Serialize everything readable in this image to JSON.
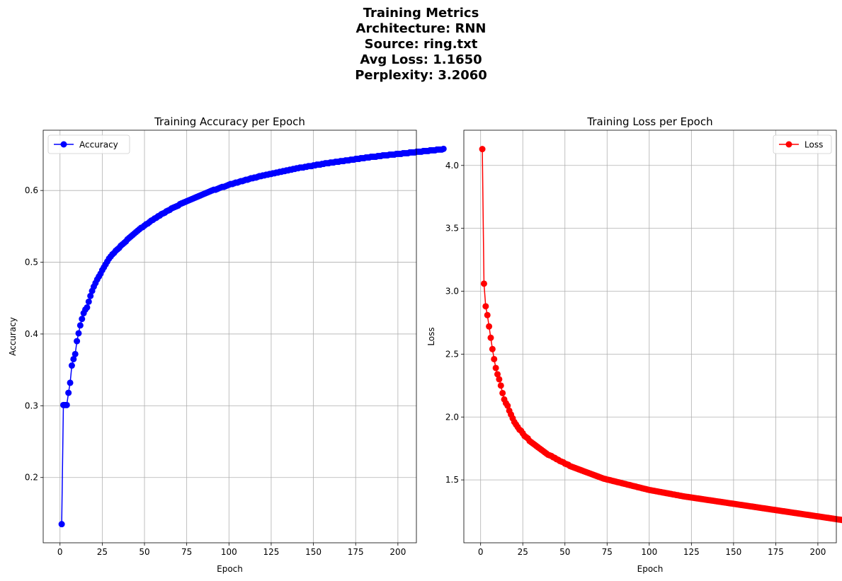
{
  "figure": {
    "suptitle_lines": [
      "Training Metrics",
      "Architecture: RNN",
      "Source: ring.txt",
      "Avg Loss: 1.1650",
      "Perplexity: 3.2060"
    ]
  },
  "chart_data": [
    {
      "type": "line",
      "title": "Training Accuracy per Epoch",
      "xlabel": "Epoch",
      "ylabel": "Accuracy",
      "xlim": [
        -9.95,
        210.95
      ],
      "ylim": [
        0.109,
        0.684
      ],
      "xticks": [
        0,
        25,
        50,
        75,
        100,
        125,
        150,
        175,
        200
      ],
      "yticks": [
        0.2,
        0.3,
        0.4,
        0.5,
        0.6
      ],
      "ytick_labels": [
        "0.2",
        "0.3",
        "0.4",
        "0.5",
        "0.6"
      ],
      "grid": true,
      "legend_position": "upper-left",
      "marker": "circle",
      "series": [
        {
          "name": "Accuracy",
          "color": "#0000ff",
          "x_start": 1,
          "x_step": 1,
          "values": [
            0.135,
            0.301,
            0.301,
            0.301,
            0.318,
            0.332,
            0.356,
            0.365,
            0.372,
            0.39,
            0.401,
            0.412,
            0.421,
            0.429,
            0.434,
            0.437,
            0.445,
            0.453,
            0.46,
            0.466,
            0.471,
            0.476,
            0.48,
            0.484,
            0.489,
            0.493,
            0.497,
            0.501,
            0.505,
            0.508,
            0.511,
            0.513,
            0.516,
            0.518,
            0.52,
            0.523,
            0.525,
            0.527,
            0.529,
            0.532,
            0.534,
            0.536,
            0.538,
            0.54,
            0.542,
            0.544,
            0.546,
            0.548,
            0.549,
            0.551,
            0.553,
            0.554,
            0.556,
            0.558,
            0.559,
            0.561,
            0.562,
            0.564,
            0.565,
            0.567,
            0.568,
            0.569,
            0.571,
            0.572,
            0.573,
            0.575,
            0.576,
            0.577,
            0.578,
            0.579,
            0.581,
            0.582,
            0.583,
            0.584,
            0.585,
            0.586,
            0.587,
            0.588,
            0.589,
            0.59,
            0.591,
            0.592,
            0.593,
            0.594,
            0.595,
            0.596,
            0.597,
            0.598,
            0.599,
            0.6,
            0.601,
            0.601,
            0.602,
            0.603,
            0.604,
            0.605,
            0.605,
            0.606,
            0.607,
            0.608,
            0.609,
            0.609,
            0.61,
            0.611,
            0.611,
            0.612,
            0.613,
            0.613,
            0.614,
            0.615,
            0.615,
            0.616,
            0.617,
            0.617,
            0.618,
            0.618,
            0.619,
            0.62,
            0.62,
            0.621,
            0.621,
            0.622,
            0.622,
            0.623,
            0.623,
            0.624,
            0.624,
            0.625,
            0.625,
            0.626,
            0.626,
            0.627,
            0.627,
            0.628,
            0.628,
            0.629,
            0.629,
            0.63,
            0.63,
            0.631,
            0.631,
            0.632,
            0.632,
            0.632,
            0.633,
            0.633,
            0.634,
            0.634,
            0.634,
            0.635,
            0.635,
            0.636,
            0.636,
            0.636,
            0.637,
            0.637,
            0.638,
            0.638,
            0.638,
            0.639,
            0.639,
            0.639,
            0.64,
            0.64,
            0.64,
            0.641,
            0.641,
            0.641,
            0.642,
            0.642,
            0.642,
            0.643,
            0.643,
            0.643,
            0.644,
            0.644,
            0.644,
            0.645,
            0.645,
            0.645,
            0.646,
            0.646,
            0.646,
            0.647,
            0.647,
            0.647,
            0.647,
            0.648,
            0.648,
            0.648,
            0.649,
            0.649,
            0.649,
            0.649,
            0.65,
            0.65,
            0.65,
            0.65,
            0.651,
            0.651,
            0.651,
            0.651,
            0.652,
            0.652,
            0.652,
            0.652,
            0.653,
            0.653,
            0.653,
            0.653,
            0.654,
            0.654,
            0.654,
            0.654,
            0.655,
            0.655,
            0.655,
            0.655,
            0.656,
            0.656,
            0.656,
            0.656,
            0.657,
            0.657,
            0.657,
            0.657,
            0.658
          ]
        }
      ]
    },
    {
      "type": "line",
      "title": "Training Loss per Epoch",
      "xlabel": "Epoch",
      "ylabel": "Loss",
      "xlim": [
        -9.95,
        210.95
      ],
      "ylim": [
        1.0,
        4.28
      ],
      "xticks": [
        0,
        25,
        50,
        75,
        100,
        125,
        150,
        175,
        200
      ],
      "yticks": [
        1.5,
        2.0,
        2.5,
        3.0,
        3.5,
        4.0
      ],
      "ytick_labels": [
        "1.5",
        "2.0",
        "2.5",
        "3.0",
        "3.5",
        "4.0"
      ],
      "grid": true,
      "legend_position": "upper-right",
      "marker": "circle",
      "series": [
        {
          "name": "Loss",
          "color": "#ff0000",
          "x_start": 1,
          "x_step": 1,
          "values": [
            4.13,
            3.06,
            2.88,
            2.81,
            2.72,
            2.63,
            2.54,
            2.46,
            2.39,
            2.34,
            2.3,
            2.25,
            2.19,
            2.14,
            2.11,
            2.09,
            2.05,
            2.02,
            1.99,
            1.96,
            1.94,
            1.92,
            1.9,
            1.89,
            1.87,
            1.85,
            1.84,
            1.83,
            1.81,
            1.8,
            1.79,
            1.78,
            1.77,
            1.76,
            1.75,
            1.74,
            1.73,
            1.72,
            1.71,
            1.7,
            1.695,
            1.69,
            1.68,
            1.675,
            1.665,
            1.66,
            1.65,
            1.645,
            1.64,
            1.63,
            1.625,
            1.62,
            1.61,
            1.605,
            1.6,
            1.595,
            1.59,
            1.585,
            1.58,
            1.575,
            1.57,
            1.565,
            1.56,
            1.555,
            1.55,
            1.545,
            1.54,
            1.535,
            1.53,
            1.525,
            1.52,
            1.515,
            1.51,
            1.507,
            1.503,
            1.5,
            1.497,
            1.493,
            1.49,
            1.487,
            1.483,
            1.48,
            1.477,
            1.473,
            1.47,
            1.467,
            1.463,
            1.46,
            1.457,
            1.453,
            1.45,
            1.447,
            1.443,
            1.44,
            1.437,
            1.433,
            1.43,
            1.427,
            1.423,
            1.42,
            1.418,
            1.415,
            1.413,
            1.41,
            1.408,
            1.405,
            1.403,
            1.4,
            1.398,
            1.395,
            1.393,
            1.39,
            1.388,
            1.385,
            1.383,
            1.38,
            1.378,
            1.375,
            1.373,
            1.37,
            1.368,
            1.366,
            1.364,
            1.362,
            1.36,
            1.358,
            1.356,
            1.354,
            1.352,
            1.35,
            1.348,
            1.346,
            1.344,
            1.342,
            1.34,
            1.338,
            1.336,
            1.334,
            1.332,
            1.33,
            1.328,
            1.326,
            1.324,
            1.322,
            1.32,
            1.318,
            1.316,
            1.314,
            1.312,
            1.31,
            1.308,
            1.306,
            1.304,
            1.302,
            1.3,
            1.298,
            1.296,
            1.294,
            1.292,
            1.29,
            1.288,
            1.286,
            1.284,
            1.282,
            1.28,
            1.278,
            1.276,
            1.274,
            1.272,
            1.27,
            1.268,
            1.266,
            1.264,
            1.262,
            1.26,
            1.258,
            1.256,
            1.254,
            1.252,
            1.25,
            1.248,
            1.246,
            1.244,
            1.242,
            1.24,
            1.238,
            1.236,
            1.234,
            1.232,
            1.23,
            1.228,
            1.226,
            1.224,
            1.222,
            1.22,
            1.218,
            1.216,
            1.214,
            1.212,
            1.21,
            1.208,
            1.206,
            1.204,
            1.202,
            1.2,
            1.198,
            1.196,
            1.194,
            1.192,
            1.19,
            1.188,
            1.186,
            1.184,
            1.182,
            1.18,
            1.178,
            1.176,
            1.174,
            1.172,
            1.17,
            1.168,
            1.166,
            1.165
          ]
        }
      ]
    }
  ]
}
